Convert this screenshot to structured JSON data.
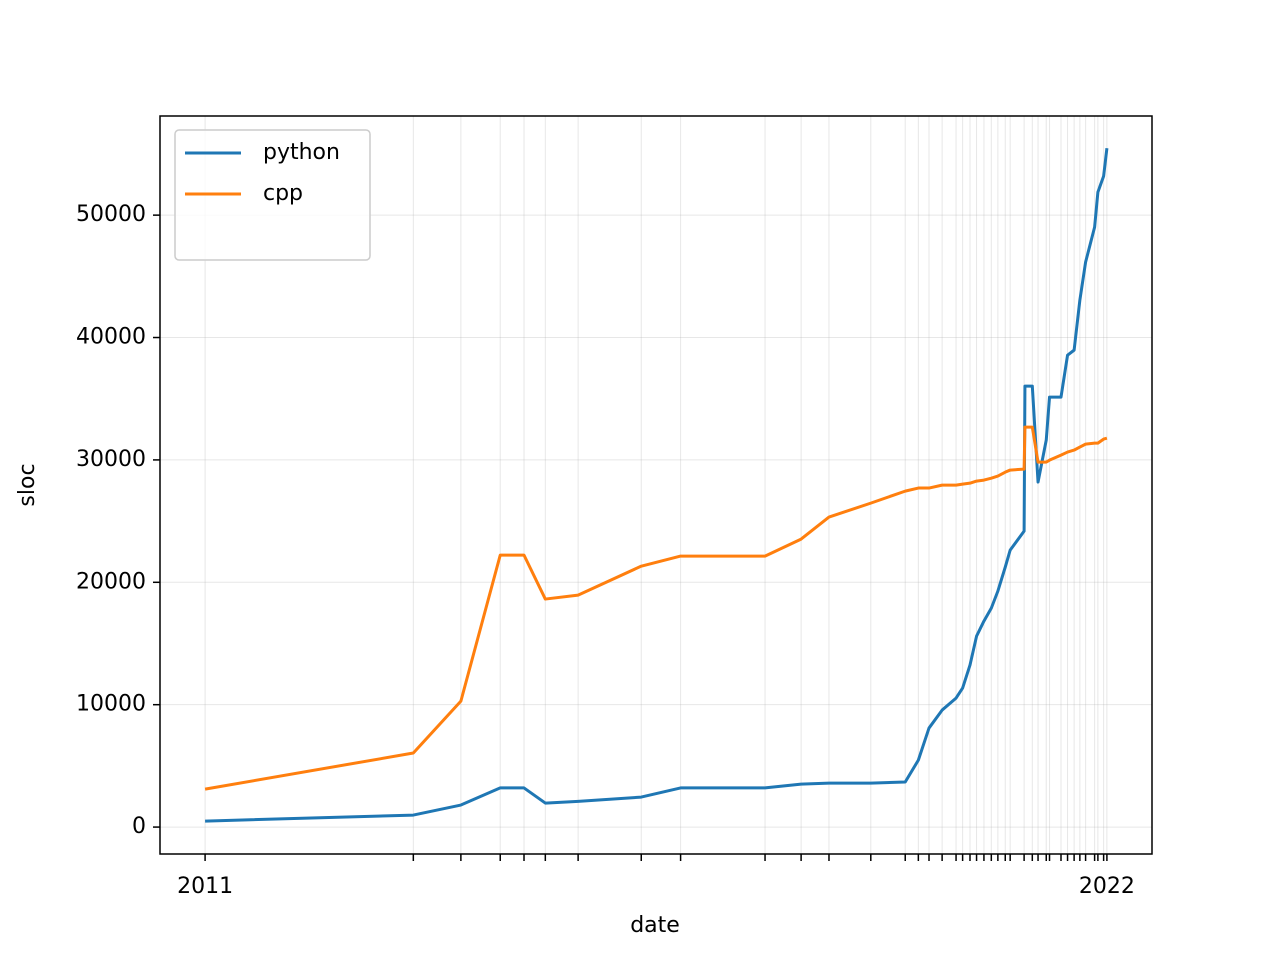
{
  "chart_data": {
    "type": "line",
    "x": [
      2011.0,
      2013.54,
      2014.12,
      2014.6,
      2014.89,
      2015.15,
      2015.55,
      2016.32,
      2016.8,
      2017.83,
      2018.27,
      2018.61,
      2019.12,
      2019.54,
      2019.7,
      2019.83,
      2019.99,
      2020.16,
      2020.24,
      2020.33,
      2020.41,
      2020.5,
      2020.59,
      2020.67,
      2020.76,
      2020.82,
      2020.99,
      2021.0,
      2021.09,
      2021.16,
      2021.26,
      2021.3,
      2021.44,
      2021.52,
      2021.6,
      2021.67,
      2021.74,
      2021.85,
      2021.89,
      2021.96,
      2022.0
    ],
    "series": [
      {
        "name": "python",
        "color": "#1f77b4",
        "values": [
          490,
          980,
          1800,
          3200,
          3200,
          1960,
          2100,
          2450,
          3200,
          3200,
          3510,
          3590,
          3590,
          3680,
          5470,
          8090,
          9560,
          10540,
          11360,
          13240,
          15600,
          16830,
          17890,
          19280,
          21240,
          22630,
          24180,
          36030,
          36030,
          28190,
          31620,
          35130,
          35130,
          38560,
          38970,
          43050,
          46160,
          49020,
          51880,
          53190,
          55470
        ]
      },
      {
        "name": "cpp",
        "color": "#ff7f0e",
        "values": [
          3100,
          6050,
          10290,
          22220,
          22220,
          18630,
          18950,
          21320,
          22140,
          22140,
          23530,
          25330,
          26470,
          27450,
          27700,
          27700,
          27940,
          27940,
          28020,
          28100,
          28270,
          28350,
          28510,
          28680,
          29000,
          29170,
          29250,
          32680,
          32680,
          29820,
          29820,
          29980,
          30390,
          30640,
          30800,
          31050,
          31290,
          31370,
          31370,
          31700,
          31780
        ]
      }
    ],
    "xlabel": "date",
    "ylabel": "sloc",
    "xlim": [
      2010.45,
      2022.55
    ],
    "ylim": [
      -2200,
      58100
    ],
    "xticks": [
      2011,
      {
        "value": 2013.54,
        "label": null
      },
      {
        "value": 2014.12,
        "label": null
      },
      {
        "value": 2014.6,
        "label": null
      },
      {
        "value": 2014.89,
        "label": null
      },
      {
        "value": 2015.15,
        "label": null
      },
      {
        "value": 2015.55,
        "label": null
      },
      {
        "value": 2016.32,
        "label": null
      },
      {
        "value": 2016.8,
        "label": null
      },
      {
        "value": 2017.83,
        "label": null
      },
      {
        "value": 2018.27,
        "label": null
      },
      {
        "value": 2018.61,
        "label": null
      },
      {
        "value": 2019.12,
        "label": null
      },
      {
        "value": 2019.54,
        "label": null
      },
      {
        "value": 2019.7,
        "label": null
      },
      {
        "value": 2019.83,
        "label": null
      },
      {
        "value": 2019.99,
        "label": null
      },
      {
        "value": 2020.16,
        "label": null
      },
      {
        "value": 2020.24,
        "label": null
      },
      {
        "value": 2020.33,
        "label": null
      },
      {
        "value": 2020.41,
        "label": null
      },
      {
        "value": 2020.5,
        "label": null
      },
      {
        "value": 2020.59,
        "label": null
      },
      {
        "value": 2020.67,
        "label": null
      },
      {
        "value": 2020.76,
        "label": null
      },
      {
        "value": 2020.82,
        "label": null
      },
      {
        "value": 2020.99,
        "label": null
      },
      {
        "value": 2021.09,
        "label": null
      },
      {
        "value": 2021.16,
        "label": null
      },
      {
        "value": 2021.26,
        "label": null
      },
      {
        "value": 2021.3,
        "label": null
      },
      {
        "value": 2021.44,
        "label": null
      },
      {
        "value": 2021.52,
        "label": null
      },
      {
        "value": 2021.6,
        "label": null
      },
      {
        "value": 2021.67,
        "label": null
      },
      {
        "value": 2021.74,
        "label": null
      },
      {
        "value": 2021.85,
        "label": null
      },
      {
        "value": 2021.89,
        "label": null
      },
      {
        "value": 2021.96,
        "label": null
      },
      2022
    ],
    "yticks": [
      0,
      10000,
      20000,
      30000,
      40000,
      50000
    ],
    "grid": true,
    "legend": "upper left"
  }
}
